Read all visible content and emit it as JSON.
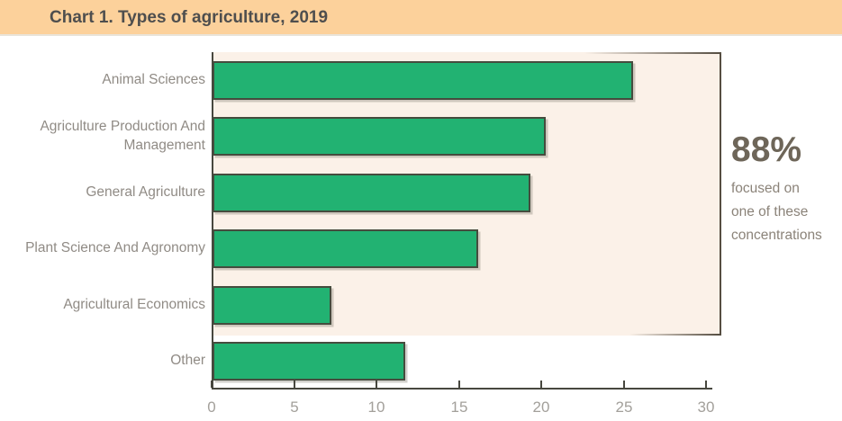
{
  "header": {
    "title": "Chart 1. Types of agriculture, 2019"
  },
  "chart_data": {
    "type": "bar",
    "orientation": "horizontal",
    "title": "Chart 1. Types of agriculture, 2019",
    "categories": [
      "Animal Sciences",
      "Agriculture Production And Management",
      "General Agriculture",
      "Plant Science And Agronomy",
      "Agricultural Economics",
      "Other"
    ],
    "values": [
      25.5,
      20.2,
      19.3,
      16.1,
      7.2,
      11.7
    ],
    "unit": "percent",
    "xlabel": "",
    "ylabel": "",
    "xlim": [
      0,
      30
    ],
    "xticks": [
      0,
      5,
      10,
      15,
      20,
      25,
      30
    ],
    "grid": false,
    "legend": false,
    "bar_color": "#22B272",
    "bar_border_color": "#454C3E",
    "highlight_panel": {
      "covers_categories": [
        "Animal Sciences",
        "Agriculture Production And Management",
        "General Agriculture",
        "Plant Science And Agronomy",
        "Agricultural Economics"
      ],
      "background": "#FBF1E8"
    }
  },
  "annotation": {
    "value": "88%",
    "caption_lines": [
      "focused on",
      "one of these",
      "concentrations"
    ]
  },
  "colors": {
    "banner": "#FCD19B",
    "title_text": "#4E4E4E",
    "axis": "#47473F",
    "label_text": "#908B85",
    "tick_text": "#A3A09B",
    "annotation_value": "#6E6659",
    "annotation_caption": "#8B8379",
    "panel_background": "#FBF1E8"
  }
}
